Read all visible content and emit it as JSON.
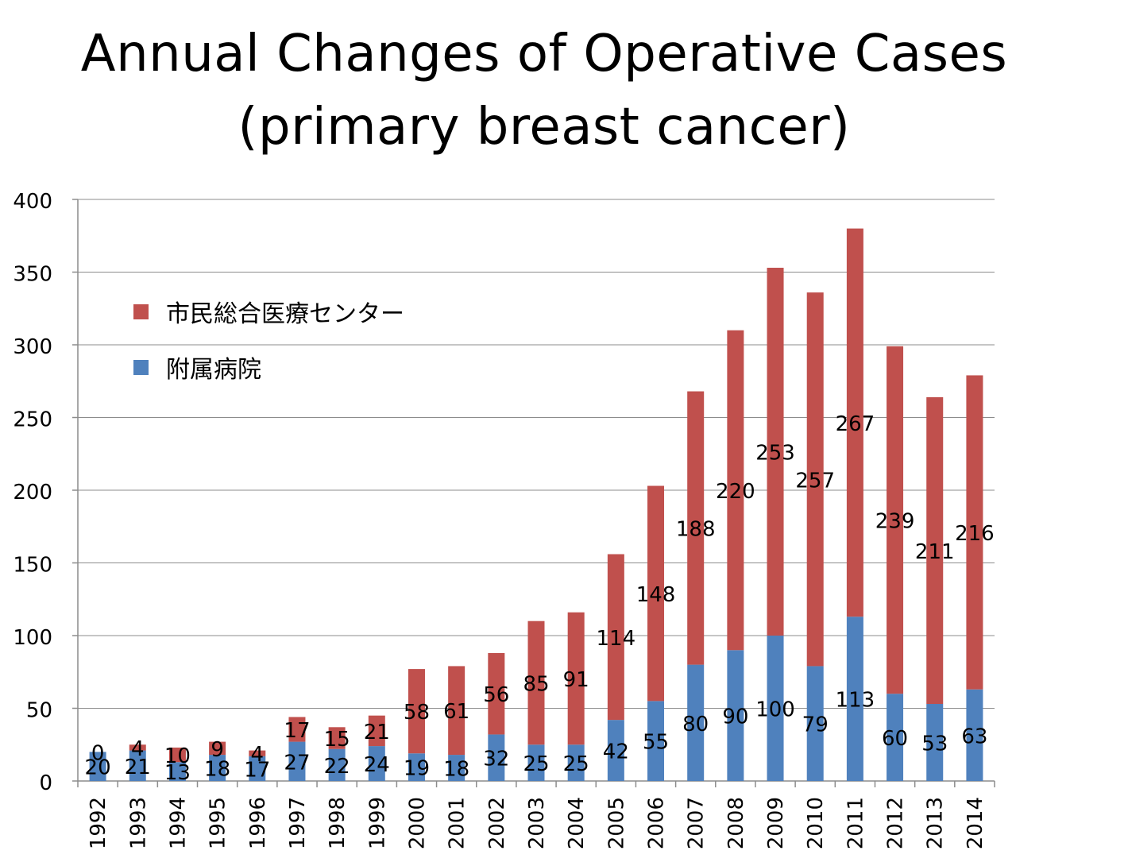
{
  "title": {
    "line1": "Annual Changes of Operative Cases",
    "line2": "(primary breast cancer)"
  },
  "legend": {
    "items": [
      {
        "label": "市民総合医療センター",
        "color": "#c0504d"
      },
      {
        "label": "附属病院",
        "color": "#4f81bd"
      }
    ]
  },
  "chart_data": {
    "type": "bar",
    "stacked": true,
    "title": "Annual Changes of Operative Cases (primary breast cancer)",
    "xlabel": "",
    "ylabel": "",
    "ylim": [
      0,
      400
    ],
    "yticks": [
      0,
      50,
      100,
      150,
      200,
      250,
      300,
      350,
      400
    ],
    "grid": true,
    "legend_position": "upper-left",
    "categories": [
      "1992",
      "1993",
      "1994",
      "1995",
      "1996",
      "1997",
      "1998",
      "1999",
      "2000",
      "2001",
      "2002",
      "2003",
      "2004",
      "2005",
      "2006",
      "2007",
      "2008",
      "2009",
      "2010",
      "2011",
      "2012",
      "2013",
      "2014"
    ],
    "series": [
      {
        "name": "附属病院",
        "color": "#4f81bd",
        "values": [
          20,
          21,
          13,
          18,
          17,
          27,
          22,
          24,
          19,
          18,
          32,
          25,
          25,
          42,
          55,
          80,
          90,
          100,
          79,
          113,
          60,
          53,
          63
        ]
      },
      {
        "name": "市民総合医療センター",
        "color": "#c0504d",
        "values": [
          0,
          4,
          10,
          9,
          4,
          17,
          15,
          21,
          58,
          61,
          56,
          85,
          91,
          114,
          148,
          188,
          220,
          253,
          257,
          267,
          239,
          211,
          216
        ]
      }
    ]
  }
}
